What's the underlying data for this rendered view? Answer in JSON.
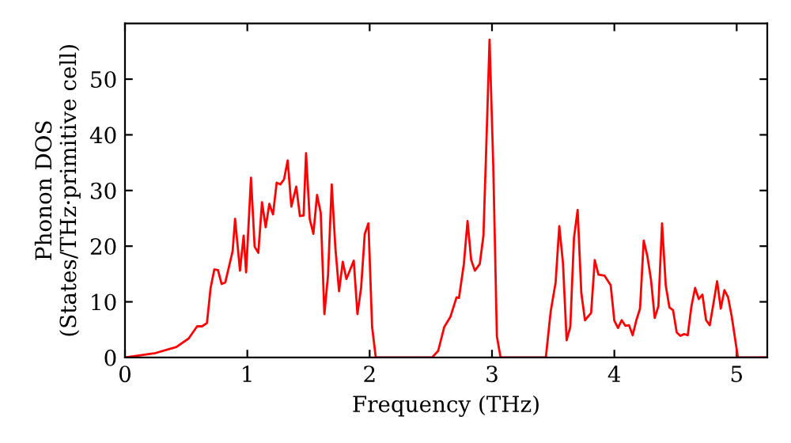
{
  "chart_data": {
    "type": "line",
    "xlabel": "Frequency (THz)",
    "ylabel": "Phonon DOS\n(States/THz·primitive cell)",
    "xlim": [
      0,
      5.25
    ],
    "ylim": [
      0,
      60
    ],
    "xticks": [
      0,
      1,
      2,
      3,
      4,
      5
    ],
    "yticks": [
      0,
      10,
      20,
      30,
      40,
      50
    ],
    "grid": false,
    "marker": "none",
    "line_style": "solid",
    "series": [
      {
        "color": "#ff0000",
        "x": [
          0.0,
          0.25,
          0.42,
          0.52,
          0.59,
          0.63,
          0.67,
          0.7,
          0.73,
          0.76,
          0.79,
          0.82,
          0.88,
          0.9,
          0.94,
          0.97,
          0.99,
          1.03,
          1.06,
          1.09,
          1.12,
          1.15,
          1.18,
          1.21,
          1.24,
          1.27,
          1.3,
          1.33,
          1.36,
          1.4,
          1.43,
          1.46,
          1.48,
          1.51,
          1.54,
          1.57,
          1.6,
          1.63,
          1.66,
          1.69,
          1.72,
          1.75,
          1.78,
          1.81,
          1.87,
          1.9,
          1.93,
          1.96,
          1.99,
          2.02,
          2.05,
          2.51,
          2.56,
          2.61,
          2.66,
          2.71,
          2.73,
          2.77,
          2.8,
          2.83,
          2.86,
          2.9,
          2.93,
          2.95,
          2.98,
          3.01,
          3.04,
          3.07,
          3.44,
          3.48,
          3.52,
          3.55,
          3.58,
          3.61,
          3.64,
          3.67,
          3.7,
          3.73,
          3.76,
          3.81,
          3.84,
          3.87,
          3.92,
          3.97,
          4.0,
          4.03,
          4.06,
          4.09,
          4.12,
          4.15,
          4.18,
          4.21,
          4.24,
          4.27,
          4.3,
          4.33,
          4.36,
          4.39,
          4.42,
          4.45,
          4.48,
          4.51,
          4.54,
          4.57,
          4.6,
          4.63,
          4.66,
          4.69,
          4.72,
          4.75,
          4.78,
          4.81,
          4.84,
          4.87,
          4.9,
          4.93,
          4.96,
          5.01,
          5.25
        ],
        "values": [
          0,
          0.8,
          1.9,
          3.4,
          5.6,
          5.6,
          6.2,
          12.5,
          15.8,
          15.7,
          13.2,
          13.5,
          19.1,
          24.9,
          15.6,
          21.9,
          15.3,
          32.3,
          19.9,
          18.8,
          27.9,
          23.4,
          27.6,
          25.7,
          31.4,
          31.1,
          32.0,
          35.4,
          27.1,
          30.7,
          25.4,
          25.5,
          36.7,
          24.9,
          22.2,
          29.2,
          26.0,
          7.8,
          14.9,
          31.1,
          19.6,
          11.9,
          17.2,
          14.1,
          17.4,
          7.8,
          12.5,
          22.2,
          24.1,
          5.5,
          0,
          0,
          1.2,
          5.5,
          7.3,
          10.8,
          10.7,
          16.8,
          24.5,
          17.5,
          15.6,
          16.8,
          21.9,
          35.6,
          57.1,
          34.7,
          3.8,
          0,
          0,
          8.3,
          13.5,
          23.6,
          17.0,
          3.1,
          5.5,
          21.5,
          26.5,
          11.6,
          6.7,
          8.0,
          17.5,
          14.9,
          14.7,
          13.0,
          6.6,
          5.3,
          6.7,
          5.7,
          5.8,
          4.0,
          6.7,
          8.8,
          21.0,
          18.2,
          13.9,
          7.1,
          9.2,
          24.1,
          13.0,
          9.0,
          8.5,
          4.5,
          3.9,
          4.2,
          4.0,
          9.2,
          12.5,
          10.5,
          11.3,
          6.7,
          5.8,
          9.7,
          13.7,
          8.8,
          12.1,
          10.8,
          7.3,
          0,
          0
        ]
      }
    ]
  }
}
